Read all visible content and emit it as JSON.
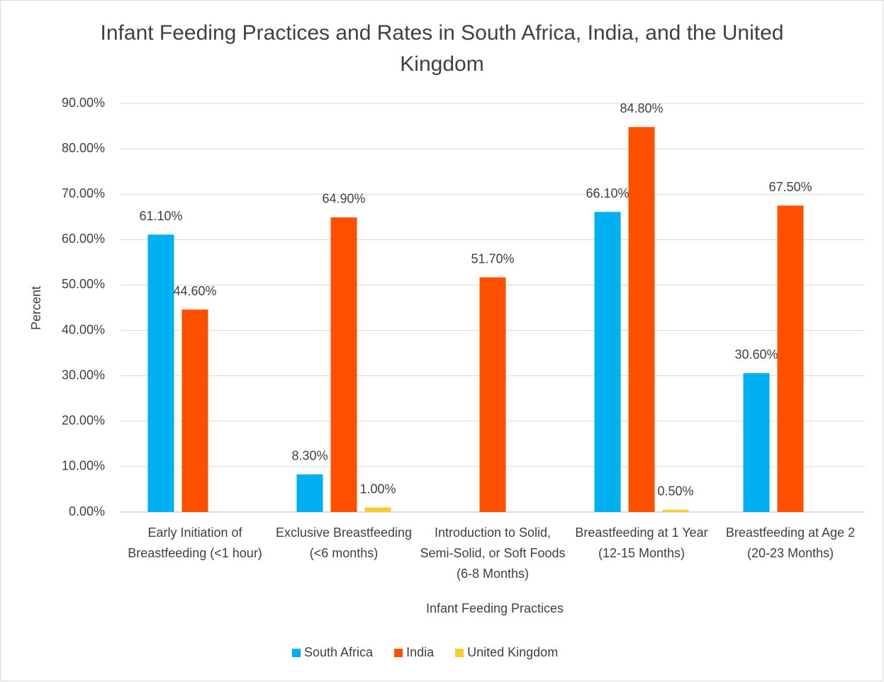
{
  "chart_data": {
    "type": "bar",
    "title": "Infant Feeding Practices and Rates in South Africa, India, and the United Kingdom",
    "x_label": "Infant Feeding Practices",
    "y_label": "Percent",
    "categories": [
      "Early Initiation of Breastfeeding (<1 hour)",
      "Exclusive Breastfeeding (<6 months)",
      "Introduction to Solid, Semi-Solid, or Soft Foods (6-8 Months)",
      "Breastfeeding at 1 Year (12-15 Months)",
      "Breastfeeding at Age 2 (20-23 Months)"
    ],
    "series": [
      {
        "name": "South Africa",
        "color": "#00b0f0",
        "values": [
          61.1,
          8.3,
          null,
          66.1,
          30.6
        ],
        "value_labels": [
          "61.10%",
          "8.30%",
          null,
          "66.10%",
          "30.60%"
        ]
      },
      {
        "name": "India",
        "color": "#ff5000",
        "values": [
          44.6,
          64.9,
          51.7,
          84.8,
          67.5
        ],
        "value_labels": [
          "44.60%",
          "64.90%",
          "51.70%",
          "84.80%",
          "67.50%"
        ]
      },
      {
        "name": "United Kingdom",
        "color": "#f8cc2c",
        "values": [
          null,
          1.0,
          null,
          0.5,
          null
        ],
        "value_labels": [
          null,
          "1.00%",
          null,
          "0.50%",
          null
        ]
      }
    ],
    "ylim": [
      0,
      90
    ],
    "yticks": [
      {
        "value": 0,
        "label": "0.00%"
      },
      {
        "value": 10,
        "label": "10.00%"
      },
      {
        "value": 20,
        "label": "20.00%"
      },
      {
        "value": 30,
        "label": "30.00%"
      },
      {
        "value": 40,
        "label": "40.00%"
      },
      {
        "value": 50,
        "label": "50.00%"
      },
      {
        "value": 60,
        "label": "60.00%"
      },
      {
        "value": 70,
        "label": "70.00%"
      },
      {
        "value": 80,
        "label": "80.00%"
      },
      {
        "value": 90,
        "label": "90.00%"
      }
    ],
    "grid": true,
    "legend": "bottom"
  }
}
